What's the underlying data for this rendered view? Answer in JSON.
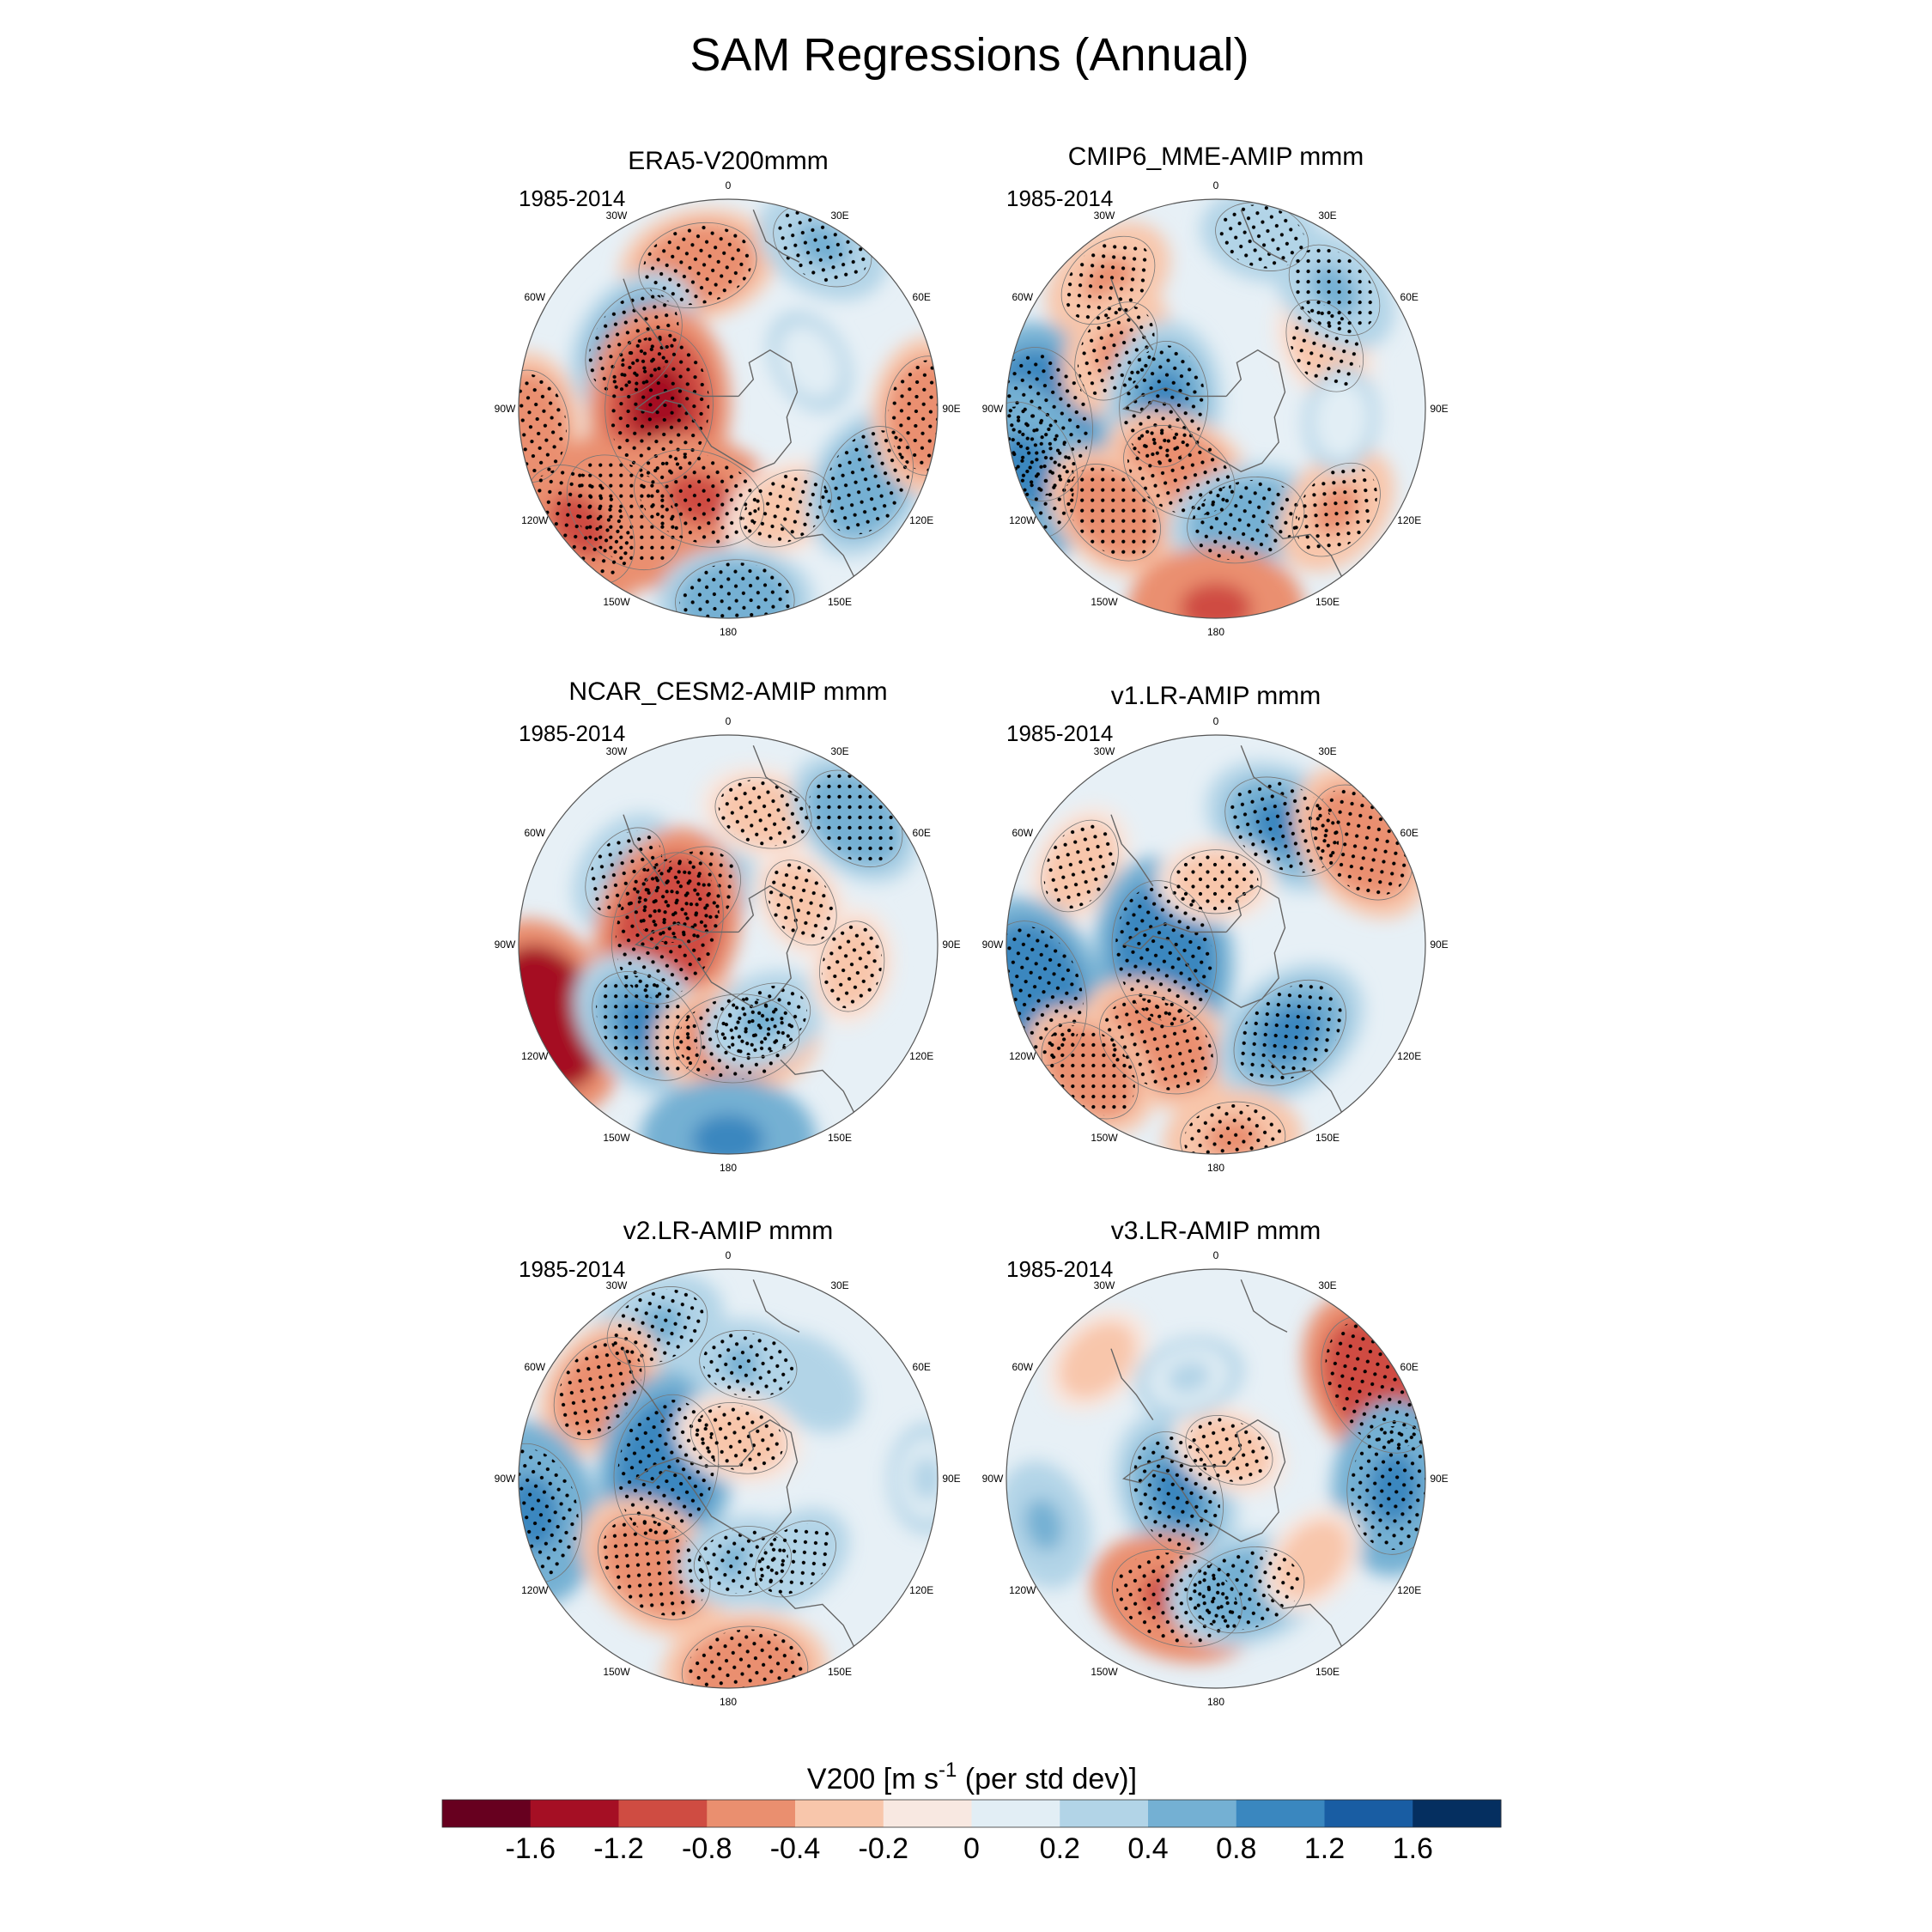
{
  "figure_title": "SAM Regressions (Annual)",
  "colors": [
    "#67001f",
    "#a50f24",
    "#cf4c42",
    "#ea8f6f",
    "#f8c6ab",
    "#f8e8e1",
    "#e2eef5",
    "#b2d4e7",
    "#74b0d3",
    "#3a87bf",
    "#195da3",
    "#052f60"
  ],
  "chart_data": [
    {
      "type": "polar-contour-map",
      "title": "ERA5-V200mmm",
      "period": "1985-2014",
      "longitude_labels": [
        "0",
        "30E",
        "60E",
        "90E",
        "120E",
        "150E",
        "180",
        "150W",
        "120W",
        "90W",
        "60W",
        "30W"
      ],
      "anomalies": [
        {
          "lon": -12,
          "r": 0.7,
          "value": -0.7,
          "stipple": true
        },
        {
          "lon": -55,
          "r": 0.55,
          "value": 0.7,
          "stipple": true
        },
        {
          "lon": -88,
          "r": 0.33,
          "value": -1.4,
          "stipple": true
        },
        {
          "lon": -95,
          "r": 0.95,
          "value": -0.6,
          "stipple": true
        },
        {
          "lon": -135,
          "r": 0.7,
          "value": -0.9,
          "stipple": true
        },
        {
          "lon": -128,
          "r": 0.9,
          "value": -0.9,
          "stipple": true
        },
        {
          "lon": -162,
          "r": 0.45,
          "value": -0.9,
          "stipple": true
        },
        {
          "lon": 150,
          "r": 0.55,
          "value": -0.4,
          "stipple": true
        },
        {
          "lon": 30,
          "r": 0.9,
          "value": 0.5,
          "stipple": true
        },
        {
          "lon": 118,
          "r": 0.75,
          "value": 0.7,
          "stipple": true
        },
        {
          "lon": 92,
          "r": 0.95,
          "value": -0.7,
          "stipple": true
        },
        {
          "lon": 178,
          "r": 0.92,
          "value": 0.7,
          "stipple": true
        },
        {
          "lon": 60,
          "r": 0.45,
          "value": 0.15,
          "stipple": false
        }
      ]
    },
    {
      "type": "polar-contour-map",
      "title": "CMIP6_MME-AMIP  mmm",
      "period": "1985-2014",
      "longitude_labels": [
        "0",
        "30E",
        "60E",
        "90E",
        "120E",
        "150E",
        "180",
        "150W",
        "120W",
        "90W",
        "60W",
        "30W"
      ],
      "anomalies": [
        {
          "lon": -40,
          "r": 0.8,
          "value": -0.5,
          "stipple": true
        },
        {
          "lon": 15,
          "r": 0.85,
          "value": 0.35,
          "stipple": true
        },
        {
          "lon": -95,
          "r": 0.85,
          "value": 1.2,
          "stipple": true
        },
        {
          "lon": -108,
          "r": 0.95,
          "value": 1.0,
          "stipple": true
        },
        {
          "lon": -60,
          "r": 0.55,
          "value": -0.5,
          "stipple": true
        },
        {
          "lon": -85,
          "r": 0.25,
          "value": 0.8,
          "stipple": true
        },
        {
          "lon": -150,
          "r": 0.35,
          "value": -0.7,
          "stipple": true
        },
        {
          "lon": -135,
          "r": 0.7,
          "value": -0.6,
          "stipple": true
        },
        {
          "lon": 165,
          "r": 0.55,
          "value": 0.7,
          "stipple": true
        },
        {
          "lon": 180,
          "r": 0.95,
          "value": -0.9,
          "stipple": false
        },
        {
          "lon": 130,
          "r": 0.75,
          "value": -0.5,
          "stipple": true
        },
        {
          "lon": 60,
          "r": 0.6,
          "value": -0.4,
          "stipple": true
        },
        {
          "lon": 45,
          "r": 0.8,
          "value": 0.5,
          "stipple": true
        },
        {
          "lon": 95,
          "r": 0.6,
          "value": 0.15,
          "stipple": false
        }
      ]
    },
    {
      "type": "polar-contour-map",
      "title": "NCAR_CESM2-AMIP  mmm",
      "period": "1985-2014",
      "longitude_labels": [
        "0",
        "30E",
        "60E",
        "90E",
        "120E",
        "150E",
        "180",
        "150W",
        "120W",
        "90W",
        "60W",
        "30W"
      ],
      "anomalies": [
        {
          "lon": -55,
          "r": 0.6,
          "value": 0.4,
          "stipple": true
        },
        {
          "lon": -40,
          "r": 0.3,
          "value": 0.7,
          "stipple": true
        },
        {
          "lon": 15,
          "r": 0.65,
          "value": -0.4,
          "stipple": true
        },
        {
          "lon": 60,
          "r": 0.4,
          "value": -0.3,
          "stipple": true
        },
        {
          "lon": 45,
          "r": 0.85,
          "value": 0.6,
          "stipple": true
        },
        {
          "lon": -75,
          "r": 0.3,
          "value": -1.2,
          "stipple": true
        },
        {
          "lon": -112,
          "r": 0.93,
          "value": -1.6,
          "stipple": false
        },
        {
          "lon": -135,
          "r": 0.55,
          "value": 0.8,
          "stipple": true
        },
        {
          "lon": 175,
          "r": 0.45,
          "value": -0.8,
          "stipple": true
        },
        {
          "lon": 180,
          "r": 0.93,
          "value": 0.9,
          "stipple": false
        },
        {
          "lon": 155,
          "r": 0.4,
          "value": 0.4,
          "stipple": true
        },
        {
          "lon": 100,
          "r": 0.6,
          "value": -0.3,
          "stipple": true
        }
      ]
    },
    {
      "type": "polar-contour-map",
      "title": "v1.LR-AMIP  mmm",
      "period": "1985-2014",
      "longitude_labels": [
        "0",
        "30E",
        "60E",
        "90E",
        "120E",
        "150E",
        "180",
        "150W",
        "120W",
        "90W",
        "60W",
        "30W"
      ],
      "anomalies": [
        {
          "lon": 30,
          "r": 0.65,
          "value": 0.8,
          "stipple": true
        },
        {
          "lon": 55,
          "r": 0.85,
          "value": -0.8,
          "stipple": true
        },
        {
          "lon": -60,
          "r": 0.75,
          "value": -0.4,
          "stipple": true
        },
        {
          "lon": -100,
          "r": 0.25,
          "value": 1.1,
          "stipple": true
        },
        {
          "lon": -105,
          "r": 0.9,
          "value": 1.1,
          "stipple": true
        },
        {
          "lon": -150,
          "r": 0.55,
          "value": -0.8,
          "stipple": true
        },
        {
          "lon": -135,
          "r": 0.85,
          "value": -0.6,
          "stipple": true
        },
        {
          "lon": 140,
          "r": 0.55,
          "value": 0.8,
          "stipple": true
        },
        {
          "lon": 0,
          "r": 0.3,
          "value": -0.3,
          "stipple": true
        },
        {
          "lon": 175,
          "r": 0.93,
          "value": -0.5,
          "stipple": true
        }
      ]
    },
    {
      "type": "polar-contour-map",
      "title": "v2.LR-AMIP  mmm",
      "period": "1985-2014",
      "longitude_labels": [
        "0",
        "30E",
        "60E",
        "90E",
        "120E",
        "150E",
        "180",
        "150W",
        "120W",
        "90W",
        "60W",
        "30W"
      ],
      "anomalies": [
        {
          "lon": -25,
          "r": 0.8,
          "value": 0.5,
          "stipple": true
        },
        {
          "lon": -55,
          "r": 0.75,
          "value": -0.6,
          "stipple": true
        },
        {
          "lon": -80,
          "r": 0.3,
          "value": 1.1,
          "stipple": true
        },
        {
          "lon": -100,
          "r": 0.95,
          "value": 1.0,
          "stipple": true
        },
        {
          "lon": -140,
          "r": 0.55,
          "value": -0.8,
          "stipple": true
        },
        {
          "lon": 10,
          "r": 0.55,
          "value": 0.4,
          "stipple": true
        },
        {
          "lon": 40,
          "r": 0.6,
          "value": 0.3,
          "stipple": false
        },
        {
          "lon": 15,
          "r": 0.2,
          "value": -0.4,
          "stipple": true
        },
        {
          "lon": 175,
          "r": 0.92,
          "value": -0.8,
          "stipple": true
        },
        {
          "lon": 170,
          "r": 0.4,
          "value": 0.4,
          "stipple": true
        },
        {
          "lon": 140,
          "r": 0.5,
          "value": 0.3,
          "stipple": true
        },
        {
          "lon": 90,
          "r": 0.95,
          "value": 0.2,
          "stipple": false
        }
      ]
    },
    {
      "type": "polar-contour-map",
      "title": "v3.LR-AMIP  mmm",
      "period": "1985-2014",
      "longitude_labels": [
        "0",
        "30E",
        "60E",
        "90E",
        "120E",
        "150E",
        "180",
        "150W",
        "120W",
        "90W",
        "60W",
        "30W"
      ],
      "anomalies": [
        {
          "lon": 60,
          "r": 0.9,
          "value": -1.1,
          "stipple": true
        },
        {
          "lon": -45,
          "r": 0.8,
          "value": -0.3,
          "stipple": false
        },
        {
          "lon": -110,
          "r": 0.2,
          "value": 0.8,
          "stipple": true
        },
        {
          "lon": 25,
          "r": 0.15,
          "value": -0.3,
          "stipple": true
        },
        {
          "lon": 93,
          "r": 0.85,
          "value": 0.9,
          "stipple": true
        },
        {
          "lon": -162,
          "r": 0.6,
          "value": -0.9,
          "stipple": true
        },
        {
          "lon": 165,
          "r": 0.55,
          "value": 0.7,
          "stipple": true
        },
        {
          "lon": -105,
          "r": 0.85,
          "value": 0.4,
          "stipple": false
        },
        {
          "lon": 130,
          "r": 0.6,
          "value": -0.3,
          "stipple": false
        },
        {
          "lon": -15,
          "r": 0.5,
          "value": 0.2,
          "stipple": false
        }
      ]
    }
  ],
  "colorbar": {
    "title": "V200 [m s",
    "title_superscript": "-1",
    "title_suffix": " (per std dev)]",
    "tick_labels": [
      "-1.6",
      "-1.2",
      "-0.8",
      "-0.4",
      "-0.2",
      "0",
      "0.2",
      "0.4",
      "0.8",
      "1.2",
      "1.6"
    ],
    "levels": [
      -1.6,
      -1.2,
      -0.8,
      -0.4,
      -0.2,
      0,
      0.2,
      0.4,
      0.8,
      1.2,
      1.6
    ]
  }
}
